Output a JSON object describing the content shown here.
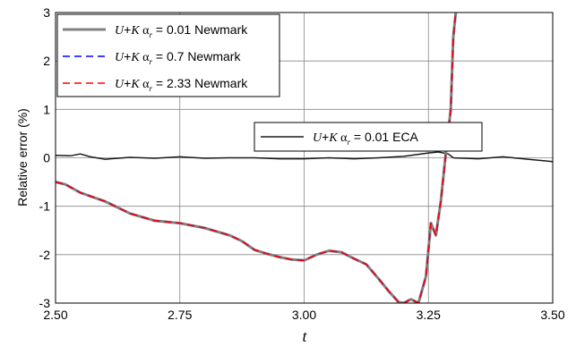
{
  "chart_data": {
    "type": "line",
    "xlabel": "t",
    "ylabel": "Relative error (%)",
    "xlim": [
      2.5,
      3.5
    ],
    "ylim": [
      -3,
      3
    ],
    "x_ticks": [
      "2.50",
      "2.75",
      "3.00",
      "3.25",
      "3.50"
    ],
    "y_ticks": [
      "-3",
      "-2",
      "-1",
      "0",
      "1",
      "2",
      "3"
    ],
    "grid": true,
    "legend": [
      {
        "placement": "top-left",
        "entries": [
          0,
          1,
          2
        ]
      },
      {
        "placement": "center-right",
        "entries": [
          3
        ]
      }
    ],
    "series": [
      {
        "name_parts": [
          "U",
          "+",
          "K",
          " α",
          "r",
          " = 0.01 Newmark"
        ],
        "color": "#808080",
        "dash": "solid",
        "width": 3,
        "x": [
          2.5,
          2.52,
          2.55,
          2.6,
          2.65,
          2.7,
          2.75,
          2.8,
          2.85,
          2.875,
          2.9,
          2.925,
          2.95,
          2.975,
          3.0,
          3.025,
          3.05,
          3.075,
          3.1,
          3.125,
          3.15,
          3.17,
          3.19,
          3.2,
          3.215,
          3.23,
          3.245,
          3.255,
          3.265,
          3.275,
          3.285,
          3.295,
          3.3,
          3.305
        ],
        "y": [
          -0.5,
          -0.55,
          -0.72,
          -0.9,
          -1.15,
          -1.3,
          -1.35,
          -1.45,
          -1.6,
          -1.72,
          -1.9,
          -1.98,
          -2.05,
          -2.1,
          -2.12,
          -2.0,
          -1.92,
          -1.95,
          -2.08,
          -2.2,
          -2.5,
          -2.75,
          -2.98,
          -3.0,
          -2.92,
          -3.0,
          -2.45,
          -1.35,
          -1.6,
          -0.9,
          0.1,
          1.0,
          2.5,
          3.0
        ]
      },
      {
        "name_parts": [
          "U",
          "+",
          "K",
          " α",
          "r",
          " = 0.7 Newmark"
        ],
        "color": "#0000ff",
        "dash": "dashed",
        "width": 1.5,
        "x": [
          2.5,
          2.52,
          2.55,
          2.6,
          2.65,
          2.7,
          2.75,
          2.8,
          2.85,
          2.875,
          2.9,
          2.925,
          2.95,
          2.975,
          3.0,
          3.025,
          3.05,
          3.075,
          3.1,
          3.125,
          3.15,
          3.17,
          3.19,
          3.2,
          3.215,
          3.23,
          3.245,
          3.255,
          3.265,
          3.275,
          3.285,
          3.295,
          3.3,
          3.305
        ],
        "y": [
          -0.5,
          -0.55,
          -0.72,
          -0.9,
          -1.15,
          -1.3,
          -1.35,
          -1.45,
          -1.6,
          -1.72,
          -1.9,
          -1.98,
          -2.05,
          -2.1,
          -2.12,
          -2.0,
          -1.92,
          -1.95,
          -2.08,
          -2.2,
          -2.5,
          -2.75,
          -2.98,
          -3.0,
          -2.92,
          -3.0,
          -2.45,
          -1.35,
          -1.6,
          -0.9,
          0.1,
          1.0,
          2.5,
          3.0
        ]
      },
      {
        "name_parts": [
          "U",
          "+",
          "K",
          " α",
          "r",
          " = 2.33 Newmark"
        ],
        "color": "#ff0000",
        "dash": "dashed",
        "width": 1.5,
        "x": [
          2.5,
          2.52,
          2.55,
          2.6,
          2.65,
          2.7,
          2.75,
          2.8,
          2.85,
          2.875,
          2.9,
          2.925,
          2.95,
          2.975,
          3.0,
          3.025,
          3.05,
          3.075,
          3.1,
          3.125,
          3.15,
          3.17,
          3.19,
          3.2,
          3.215,
          3.23,
          3.245,
          3.255,
          3.265,
          3.275,
          3.285,
          3.295,
          3.3,
          3.305
        ],
        "y": [
          -0.5,
          -0.55,
          -0.72,
          -0.9,
          -1.15,
          -1.3,
          -1.35,
          -1.45,
          -1.6,
          -1.72,
          -1.9,
          -1.98,
          -2.05,
          -2.1,
          -2.12,
          -2.0,
          -1.92,
          -1.95,
          -2.08,
          -2.2,
          -2.5,
          -2.75,
          -2.98,
          -3.0,
          -2.92,
          -3.0,
          -2.45,
          -1.35,
          -1.6,
          -0.9,
          0.1,
          1.0,
          2.5,
          3.0
        ]
      },
      {
        "name_parts": [
          "U",
          "+",
          "K",
          " α",
          "r",
          " = 0.01 ECA"
        ],
        "color": "#1a1a1a",
        "dash": "solid",
        "width": 1.5,
        "x": [
          2.5,
          2.53,
          2.55,
          2.57,
          2.6,
          2.65,
          2.7,
          2.75,
          2.8,
          2.85,
          2.9,
          2.95,
          3.0,
          3.05,
          3.1,
          3.15,
          3.2,
          3.25,
          3.27,
          3.29,
          3.3,
          3.35,
          3.4,
          3.45,
          3.5
        ],
        "y": [
          0.05,
          0.04,
          0.08,
          0.02,
          -0.03,
          0.01,
          -0.01,
          0.02,
          -0.01,
          0.0,
          0.0,
          -0.02,
          -0.02,
          0.0,
          -0.02,
          0.0,
          0.03,
          0.1,
          0.12,
          0.08,
          0.0,
          -0.02,
          0.02,
          -0.03,
          -0.08
        ]
      }
    ]
  }
}
